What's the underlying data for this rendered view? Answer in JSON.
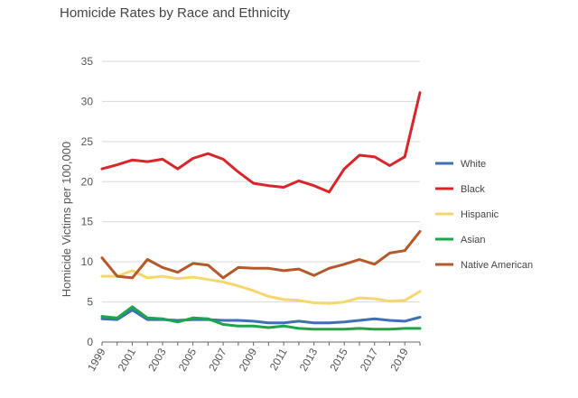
{
  "chart_data": {
    "type": "line",
    "title": "Homicide Rates by Race and Ethnicity",
    "xlabel": "",
    "ylabel": "Homicide Victims per 100,000",
    "ylim": [
      0,
      35
    ],
    "yticks": [
      0,
      5,
      10,
      15,
      20,
      25,
      30,
      35
    ],
    "xticks": [
      1999,
      2001,
      2003,
      2005,
      2007,
      2009,
      2011,
      2013,
      2015,
      2017,
      2019
    ],
    "x": [
      1999,
      2000,
      2001,
      2002,
      2003,
      2004,
      2005,
      2006,
      2007,
      2008,
      2009,
      2010,
      2011,
      2012,
      2013,
      2014,
      2015,
      2016,
      2017,
      2018,
      2019,
      2020
    ],
    "grid": "horizontal",
    "legend_position": "right",
    "series": [
      {
        "name": "White",
        "color": "#3f6fb5",
        "values": [
          2.9,
          2.8,
          4.0,
          2.8,
          2.8,
          2.7,
          2.8,
          2.8,
          2.7,
          2.7,
          2.6,
          2.4,
          2.4,
          2.6,
          2.4,
          2.4,
          2.5,
          2.7,
          2.9,
          2.7,
          2.6,
          3.1
        ]
      },
      {
        "name": "Black",
        "color": "#d9262b",
        "values": [
          21.6,
          22.1,
          22.7,
          22.5,
          22.8,
          21.6,
          22.9,
          23.5,
          22.8,
          21.2,
          19.8,
          19.5,
          19.3,
          20.1,
          19.5,
          18.7,
          21.6,
          23.3,
          23.1,
          22.0,
          23.1,
          31.1
        ]
      },
      {
        "name": "Hispanic",
        "color": "#f5d76e",
        "values": [
          8.2,
          8.2,
          8.9,
          8.0,
          8.2,
          7.9,
          8.1,
          7.8,
          7.5,
          7.0,
          6.4,
          5.7,
          5.3,
          5.2,
          4.9,
          4.8,
          5.0,
          5.5,
          5.4,
          5.1,
          5.2,
          6.3
        ]
      },
      {
        "name": "Asian",
        "color": "#1ca64a",
        "values": [
          3.2,
          3.0,
          4.4,
          3.0,
          2.9,
          2.5,
          3.0,
          2.9,
          2.2,
          2.0,
          2.0,
          1.8,
          2.0,
          1.7,
          1.6,
          1.6,
          1.6,
          1.7,
          1.6,
          1.6,
          1.7,
          1.7
        ]
      },
      {
        "name": "Native American",
        "color": "#b5582a",
        "values": [
          10.5,
          8.2,
          8.0,
          10.3,
          9.3,
          8.7,
          9.8,
          9.6,
          8.0,
          9.3,
          9.2,
          9.2,
          8.9,
          9.1,
          8.3,
          9.2,
          9.7,
          10.3,
          9.7,
          11.1,
          11.4,
          13.8
        ]
      }
    ]
  }
}
